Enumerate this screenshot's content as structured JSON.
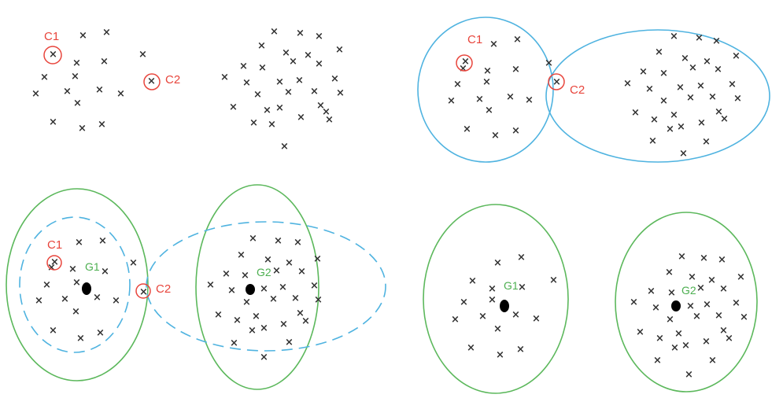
{
  "panels": [
    {
      "id": "top-left",
      "labels": [
        {
          "text": "C1",
          "kind": "centroid-label"
        },
        {
          "text": "C2",
          "kind": "centroid-label"
        }
      ]
    },
    {
      "id": "top-right",
      "labels": [
        {
          "text": "C1",
          "kind": "centroid-label"
        },
        {
          "text": "C2",
          "kind": "centroid-label"
        }
      ]
    },
    {
      "id": "bottom-left",
      "labels": [
        {
          "text": "C1",
          "kind": "centroid-label"
        },
        {
          "text": "G1",
          "kind": "mean-label"
        },
        {
          "text": "G2",
          "kind": "mean-label"
        },
        {
          "text": "C2",
          "kind": "centroid-label"
        }
      ]
    },
    {
      "id": "bottom-right",
      "labels": [
        {
          "text": "G1",
          "kind": "mean-label"
        },
        {
          "text": "G2",
          "kind": "mean-label"
        }
      ]
    }
  ],
  "colors": {
    "point": "#333333",
    "centroid_label": "#e8453c",
    "mean_label": "#4caf50",
    "assignment_ellipse": "#4fb3e0",
    "cluster_ellipse": "#5cb85c",
    "mean_dot": "#000000"
  },
  "point_glyph": "×"
}
